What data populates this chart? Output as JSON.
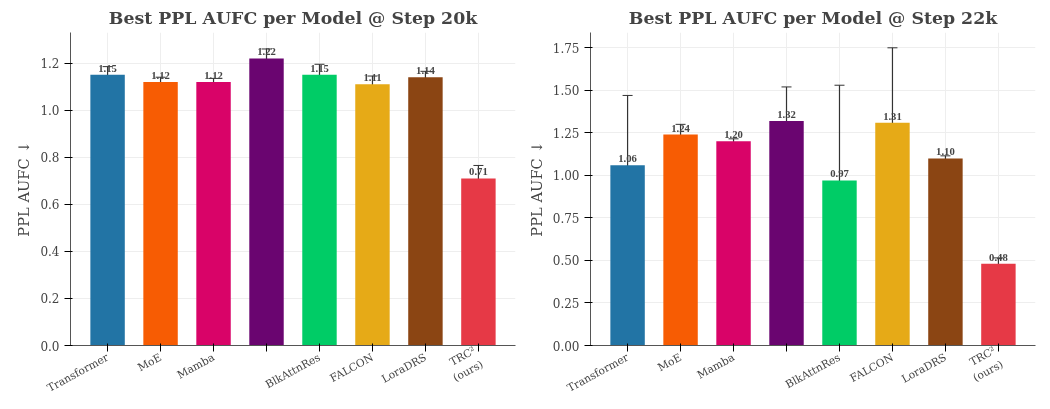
{
  "chart_data": [
    {
      "type": "bar",
      "title": "Best PPL AUFC per Model @ Step 20k",
      "ylabel": "PPL AUFC ↓",
      "categories": [
        "Transformer",
        "MoE",
        "Mamba",
        null,
        "BlkAttnRes",
        "FALCON",
        "LoraDRS",
        "TRC²\n(ours)"
      ],
      "values": [
        1.15,
        1.12,
        1.12,
        1.22,
        1.15,
        1.11,
        1.14,
        0.71
      ],
      "colors": [
        "#2274a5",
        "#f75c03",
        "#d90368",
        "#6a0570",
        "#00cc66",
        "#e6aa17",
        "#8b4513",
        "#e63946"
      ],
      "errors": [
        0.035,
        0.02,
        0.015,
        0.04,
        0.045,
        0.035,
        0.025,
        0.055
      ],
      "ylim": [
        0,
        1.33
      ],
      "yticks": [
        {
          "value": 0,
          "label": "0.0"
        },
        0.2,
        0.4,
        0.6,
        0.8,
        {
          "value": 1,
          "label": "1.0"
        },
        1.2
      ],
      "grid": true,
      "value_labels": [
        "1.15",
        "1.12",
        "1.12",
        "1.22",
        "1.15",
        "1.11",
        "1.14",
        "0.71"
      ]
    },
    {
      "type": "bar",
      "title": "Best PPL AUFC per Model @ Step 22k",
      "ylabel": "PPL AUFC ↓",
      "categories": [
        "Transformer",
        "MoE",
        "Mamba",
        null,
        "BlkAttnRes",
        "FALCON",
        "LoraDRS",
        "TRC²\n(ours)"
      ],
      "values": [
        1.06,
        1.24,
        1.2,
        1.32,
        0.97,
        1.31,
        1.1,
        0.48
      ],
      "colors": [
        "#2274a5",
        "#f75c03",
        "#d90368",
        "#6a0570",
        "#00cc66",
        "#e6aa17",
        "#8b4513",
        "#e63946"
      ],
      "errors": [
        0.41,
        0.06,
        0.015,
        0.2,
        0.56,
        0.44,
        0.015,
        0.035
      ],
      "ylim": [
        0,
        1.84
      ],
      "yticks": [
        {
          "value": 0,
          "label": "0.00"
        },
        {
          "value": 0.25,
          "label": "0.25"
        },
        {
          "value": 0.5,
          "label": "0.50"
        },
        {
          "value": 0.75,
          "label": "0.75"
        },
        {
          "value": 1,
          "label": "1.00"
        },
        {
          "value": 1.25,
          "label": "1.25"
        },
        {
          "value": 1.5,
          "label": "1.50"
        },
        {
          "value": 1.75,
          "label": "1.75"
        }
      ],
      "grid": true,
      "value_labels": [
        "1.06",
        "1.24",
        "1.20",
        "1.32",
        "0.97",
        "1.31",
        "1.10",
        "0.48"
      ]
    }
  ]
}
